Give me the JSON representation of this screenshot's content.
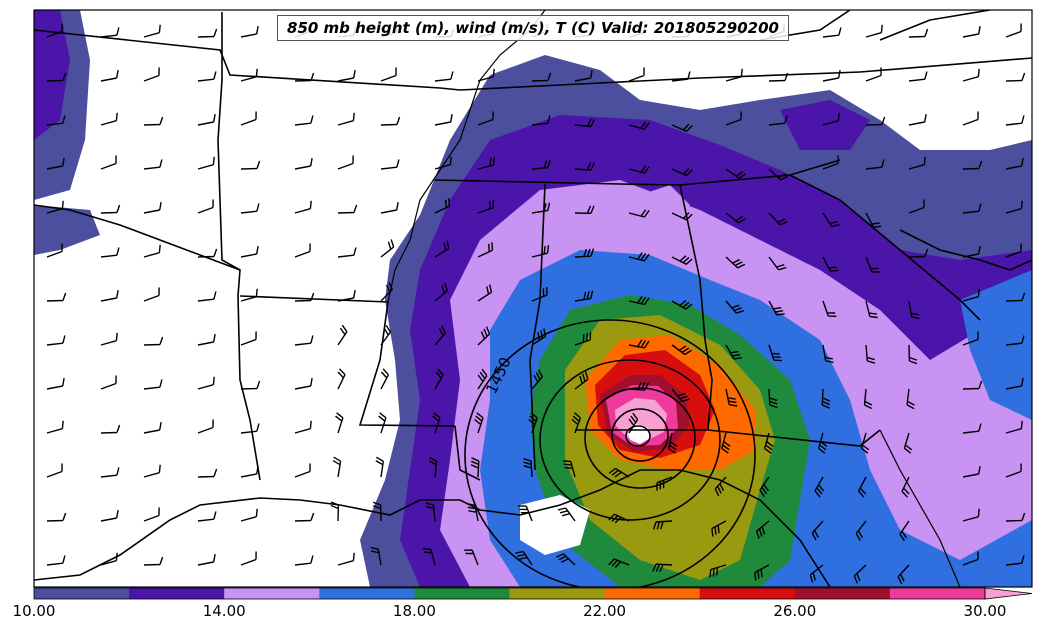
{
  "title": "850 mb height (m), wind (m/s), T (C) Valid: 201805290200",
  "contour_label": "1450",
  "colorbar": {
    "tick_labels": [
      "10.00",
      "14.00",
      "18.00",
      "22.00",
      "26.00",
      "30.00"
    ],
    "colors": [
      "#4b4f9e",
      "#4a15a8",
      "#c893f2",
      "#2f6fe0",
      "#1f8a3c",
      "#9a9a10",
      "#ff6a00",
      "#d60e0e",
      "#a0102e",
      "#ee3a9a",
      "#f7a0d4"
    ],
    "range": [
      10,
      32
    ],
    "extend": "max"
  },
  "colors": {
    "state_lines": "#000000",
    "background": "#ffffff"
  }
}
